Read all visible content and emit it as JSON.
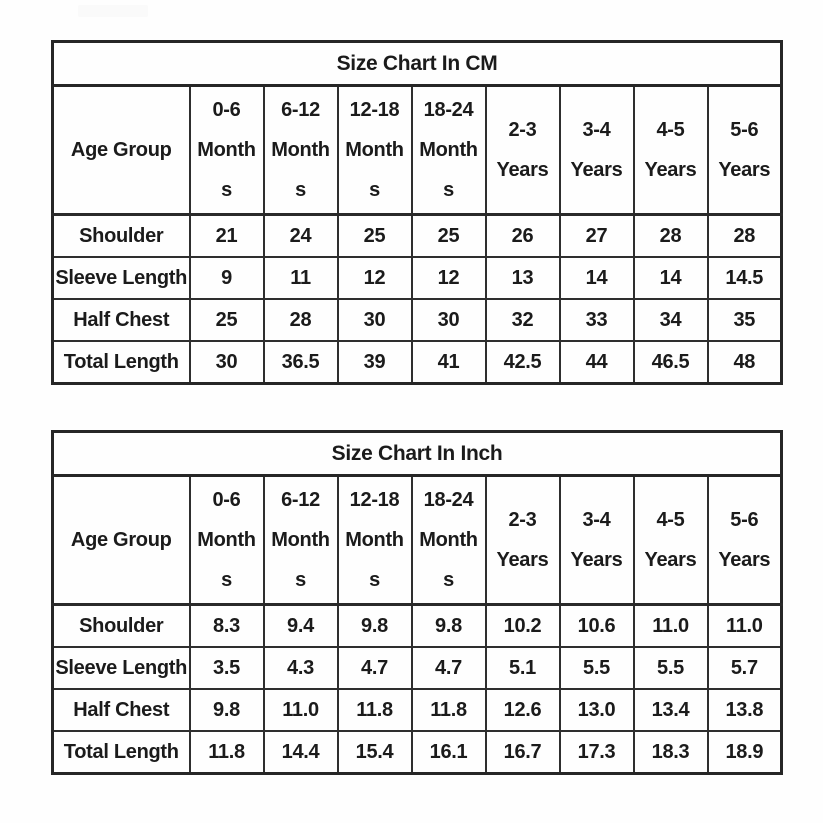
{
  "page": {
    "background_color": "#fefefe",
    "text_color": "#1b1b1b",
    "border_color": "#2e2e2e"
  },
  "tables": [
    {
      "title": "Size Chart In CM",
      "corner_label": "Age Group",
      "columns": [
        [
          "0-6",
          "Month",
          "s"
        ],
        [
          "6-12",
          "Month",
          "s"
        ],
        [
          "12-18",
          "Month",
          "s"
        ],
        [
          "18-24",
          "Month",
          "s"
        ],
        [
          "2-3",
          "Years"
        ],
        [
          "3-4",
          "Years"
        ],
        [
          "4-5",
          "Years"
        ],
        [
          "5-6",
          "Years"
        ]
      ],
      "rows": [
        {
          "label": "Shoulder",
          "values": [
            "21",
            "24",
            "25",
            "25",
            "26",
            "27",
            "28",
            "28"
          ]
        },
        {
          "label": "Sleeve Length",
          "values": [
            "9",
            "11",
            "12",
            "12",
            "13",
            "14",
            "14",
            "14.5"
          ]
        },
        {
          "label": "Half Chest",
          "values": [
            "25",
            "28",
            "30",
            "30",
            "32",
            "33",
            "34",
            "35"
          ]
        },
        {
          "label": "Total Length",
          "values": [
            "30",
            "36.5",
            "39",
            "41",
            "42.5",
            "44",
            "46.5",
            "48"
          ]
        }
      ]
    },
    {
      "title": "Size Chart In Inch",
      "corner_label": "Age Group",
      "columns": [
        [
          "0-6",
          "Month",
          "s"
        ],
        [
          "6-12",
          "Month",
          "s"
        ],
        [
          "12-18",
          "Month",
          "s"
        ],
        [
          "18-24",
          "Month",
          "s"
        ],
        [
          "2-3",
          "Years"
        ],
        [
          "3-4",
          "Years"
        ],
        [
          "4-5",
          "Years"
        ],
        [
          "5-6",
          "Years"
        ]
      ],
      "rows": [
        {
          "label": "Shoulder",
          "values": [
            "8.3",
            "9.4",
            "9.8",
            "9.8",
            "10.2",
            "10.6",
            "11.0",
            "11.0"
          ]
        },
        {
          "label": "Sleeve Length",
          "values": [
            "3.5",
            "4.3",
            "4.7",
            "4.7",
            "5.1",
            "5.5",
            "5.5",
            "5.7"
          ]
        },
        {
          "label": "Half Chest",
          "values": [
            "9.8",
            "11.0",
            "11.8",
            "11.8",
            "12.6",
            "13.0",
            "13.4",
            "13.8"
          ]
        },
        {
          "label": "Total Length",
          "values": [
            "11.8",
            "14.4",
            "15.4",
            "16.1",
            "16.7",
            "17.3",
            "18.3",
            "18.9"
          ]
        }
      ]
    }
  ]
}
